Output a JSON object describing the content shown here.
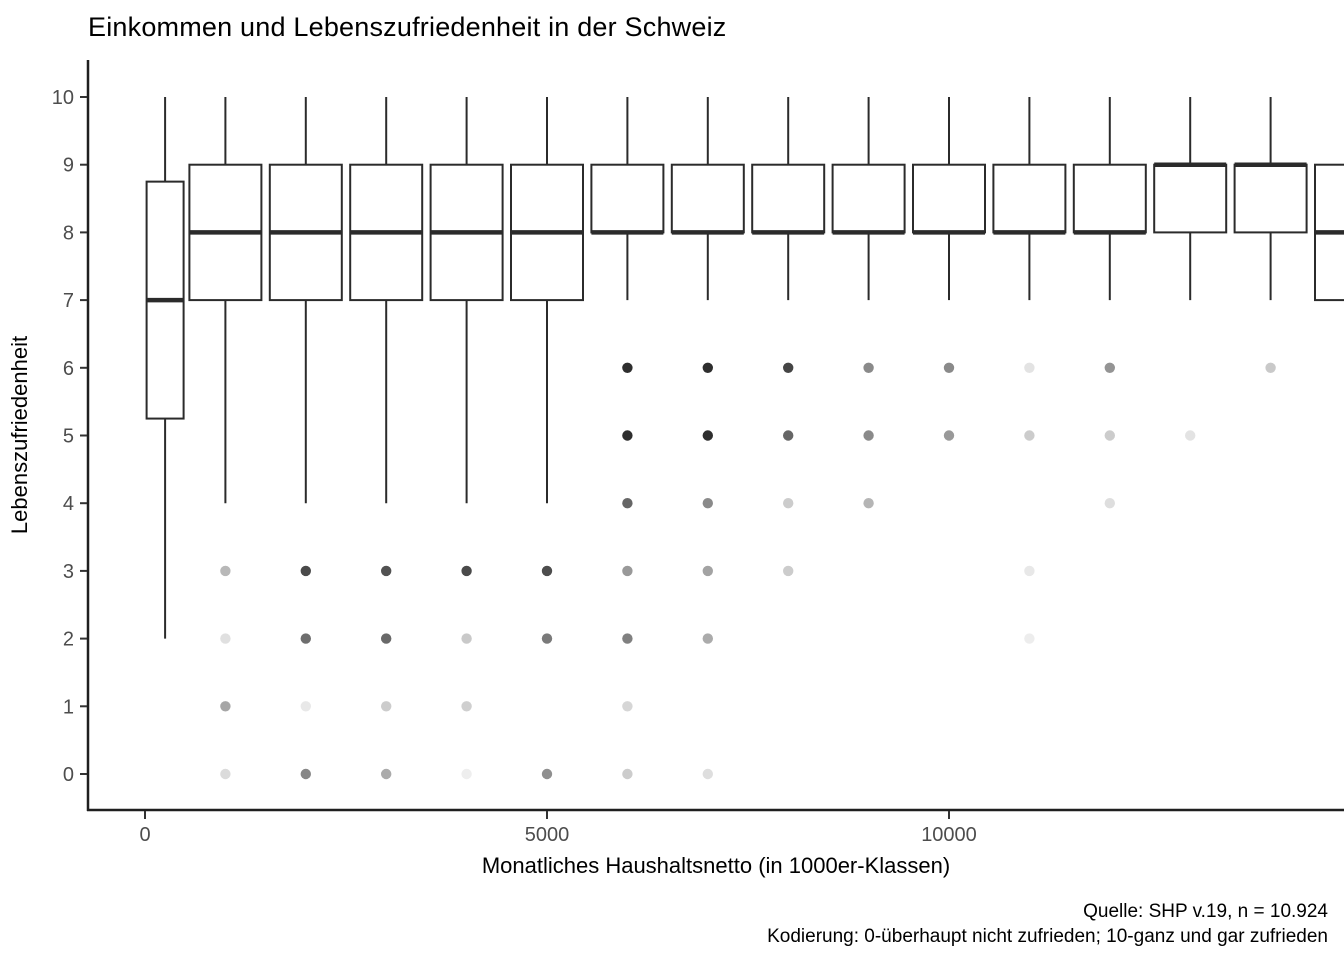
{
  "title": "Einkommen und Lebenszufriedenheit in der Schweiz",
  "caption": {
    "line1": "Quelle: SHP v.19, n = 10.924",
    "line2": "Kodierung: 0-überhaupt nicht zufrieden; 10-ganz und gar zufrieden"
  },
  "colors": {
    "background": "#ffffff",
    "box_stroke": "#2b2b2b",
    "box_fill": "#ffffff",
    "axis_line": "#1f1f1f",
    "tick_mark": "#333333",
    "tick_label": "#4d4d4d",
    "text": "#000000"
  },
  "chart_data": {
    "type": "boxplot",
    "title": "Einkommen und Lebenszufriedenheit in der Schweiz",
    "xlabel": "Monatliches Haushaltsnetto (in 1000er-Klassen)",
    "ylabel": "Lebenszufriedenheit",
    "ylim": [
      0,
      10
    ],
    "xlim_shown": [
      -700,
      14900
    ],
    "grid": false,
    "legend": "none",
    "y_ticks": [
      0,
      1,
      2,
      3,
      4,
      5,
      6,
      7,
      8,
      9,
      10
    ],
    "x_ticks": [
      {
        "value": 0,
        "label": "0"
      },
      {
        "value": 5000,
        "label": "5000"
      },
      {
        "value": 10000,
        "label": "10000"
      }
    ],
    "boxes": [
      {
        "x": 250,
        "low": 2,
        "q1": 5.25,
        "median": 7,
        "q3": 8.75,
        "high": 10,
        "narrow": true
      },
      {
        "x": 1000,
        "low": 4,
        "q1": 7,
        "median": 8,
        "q3": 9,
        "high": 10
      },
      {
        "x": 2000,
        "low": 4,
        "q1": 7,
        "median": 8,
        "q3": 9,
        "high": 10
      },
      {
        "x": 3000,
        "low": 4,
        "q1": 7,
        "median": 8,
        "q3": 9,
        "high": 10
      },
      {
        "x": 4000,
        "low": 4,
        "q1": 7,
        "median": 8,
        "q3": 9,
        "high": 10
      },
      {
        "x": 5000,
        "low": 4,
        "q1": 7,
        "median": 8,
        "q3": 9,
        "high": 10
      },
      {
        "x": 6000,
        "low": 7,
        "q1": 8,
        "median": 8,
        "q3": 9,
        "high": 10
      },
      {
        "x": 7000,
        "low": 7,
        "q1": 8,
        "median": 8,
        "q3": 9,
        "high": 10
      },
      {
        "x": 8000,
        "low": 7,
        "q1": 8,
        "median": 8,
        "q3": 9,
        "high": 10
      },
      {
        "x": 9000,
        "low": 7,
        "q1": 8,
        "median": 8,
        "q3": 9,
        "high": 10
      },
      {
        "x": 10000,
        "low": 7,
        "q1": 8,
        "median": 8,
        "q3": 9,
        "high": 10
      },
      {
        "x": 11000,
        "low": 7,
        "q1": 8,
        "median": 8,
        "q3": 9,
        "high": 10
      },
      {
        "x": 12000,
        "low": 7,
        "q1": 8,
        "median": 8,
        "q3": 9,
        "high": 10
      },
      {
        "x": 13000,
        "low": 7,
        "q1": 8,
        "median": 9,
        "q3": 9,
        "high": 10
      },
      {
        "x": 14000,
        "low": 7,
        "q1": 8,
        "median": 9,
        "q3": 9,
        "high": 10
      },
      {
        "x": 15000,
        "low": null,
        "q1": 7,
        "median": 8,
        "q3": 9,
        "high": null,
        "clipped": true
      }
    ],
    "outliers": [
      {
        "x": 1000,
        "y": 3,
        "color": "#b8b8b8"
      },
      {
        "x": 1000,
        "y": 2,
        "color": "#e0e0e0"
      },
      {
        "x": 1000,
        "y": 1,
        "color": "#a6a6a6"
      },
      {
        "x": 1000,
        "y": 0,
        "color": "#dbdbdb"
      },
      {
        "x": 2000,
        "y": 3,
        "color": "#4a4a4a"
      },
      {
        "x": 2000,
        "y": 2,
        "color": "#6e6e6e"
      },
      {
        "x": 2000,
        "y": 1,
        "color": "#e8e8e8"
      },
      {
        "x": 2000,
        "y": 0,
        "color": "#878787"
      },
      {
        "x": 3000,
        "y": 3,
        "color": "#525252"
      },
      {
        "x": 3000,
        "y": 2,
        "color": "#696969"
      },
      {
        "x": 3000,
        "y": 1,
        "color": "#cccccc"
      },
      {
        "x": 3000,
        "y": 0,
        "color": "#ababab"
      },
      {
        "x": 4000,
        "y": 3,
        "color": "#4a4a4a"
      },
      {
        "x": 4000,
        "y": 2,
        "color": "#c9c9c9"
      },
      {
        "x": 4000,
        "y": 1,
        "color": "#cfcfcf"
      },
      {
        "x": 4000,
        "y": 0,
        "color": "#eeeeee"
      },
      {
        "x": 5000,
        "y": 3,
        "color": "#4d4d4d"
      },
      {
        "x": 5000,
        "y": 2,
        "color": "#7a7a7a"
      },
      {
        "x": 5000,
        "y": 0,
        "color": "#8f8f8f"
      },
      {
        "x": 6000,
        "y": 6,
        "color": "#2e2e2e"
      },
      {
        "x": 6000,
        "y": 5,
        "color": "#2e2e2e"
      },
      {
        "x": 6000,
        "y": 4,
        "color": "#666666"
      },
      {
        "x": 6000,
        "y": 3,
        "color": "#999999"
      },
      {
        "x": 6000,
        "y": 2,
        "color": "#808080"
      },
      {
        "x": 6000,
        "y": 1,
        "color": "#d6d6d6"
      },
      {
        "x": 6000,
        "y": 0,
        "color": "#cccccc"
      },
      {
        "x": 7000,
        "y": 6,
        "color": "#2e2e2e"
      },
      {
        "x": 7000,
        "y": 5,
        "color": "#2e2e2e"
      },
      {
        "x": 7000,
        "y": 4,
        "color": "#8a8a8a"
      },
      {
        "x": 7000,
        "y": 3,
        "color": "#a3a3a3"
      },
      {
        "x": 7000,
        "y": 2,
        "color": "#ababab"
      },
      {
        "x": 7000,
        "y": 0,
        "color": "#dedede"
      },
      {
        "x": 8000,
        "y": 6,
        "color": "#454545"
      },
      {
        "x": 8000,
        "y": 5,
        "color": "#666666"
      },
      {
        "x": 8000,
        "y": 4,
        "color": "#cccccc"
      },
      {
        "x": 8000,
        "y": 3,
        "color": "#cccccc"
      },
      {
        "x": 9000,
        "y": 6,
        "color": "#8a8a8a"
      },
      {
        "x": 9000,
        "y": 5,
        "color": "#8a8a8a"
      },
      {
        "x": 9000,
        "y": 4,
        "color": "#b5b5b5"
      },
      {
        "x": 10000,
        "y": 6,
        "color": "#8a8a8a"
      },
      {
        "x": 10000,
        "y": 5,
        "color": "#999999"
      },
      {
        "x": 11000,
        "y": 6,
        "color": "#e3e3e3"
      },
      {
        "x": 11000,
        "y": 5,
        "color": "#cccccc"
      },
      {
        "x": 11000,
        "y": 3,
        "color": "#e8e8e8"
      },
      {
        "x": 11000,
        "y": 2,
        "color": "#ededed"
      },
      {
        "x": 12000,
        "y": 6,
        "color": "#949494"
      },
      {
        "x": 12000,
        "y": 5,
        "color": "#cccccc"
      },
      {
        "x": 12000,
        "y": 4,
        "color": "#dedede"
      },
      {
        "x": 13000,
        "y": 5,
        "color": "#e3e3e3"
      },
      {
        "x": 14000,
        "y": 6,
        "color": "#c9c9c9"
      }
    ]
  }
}
